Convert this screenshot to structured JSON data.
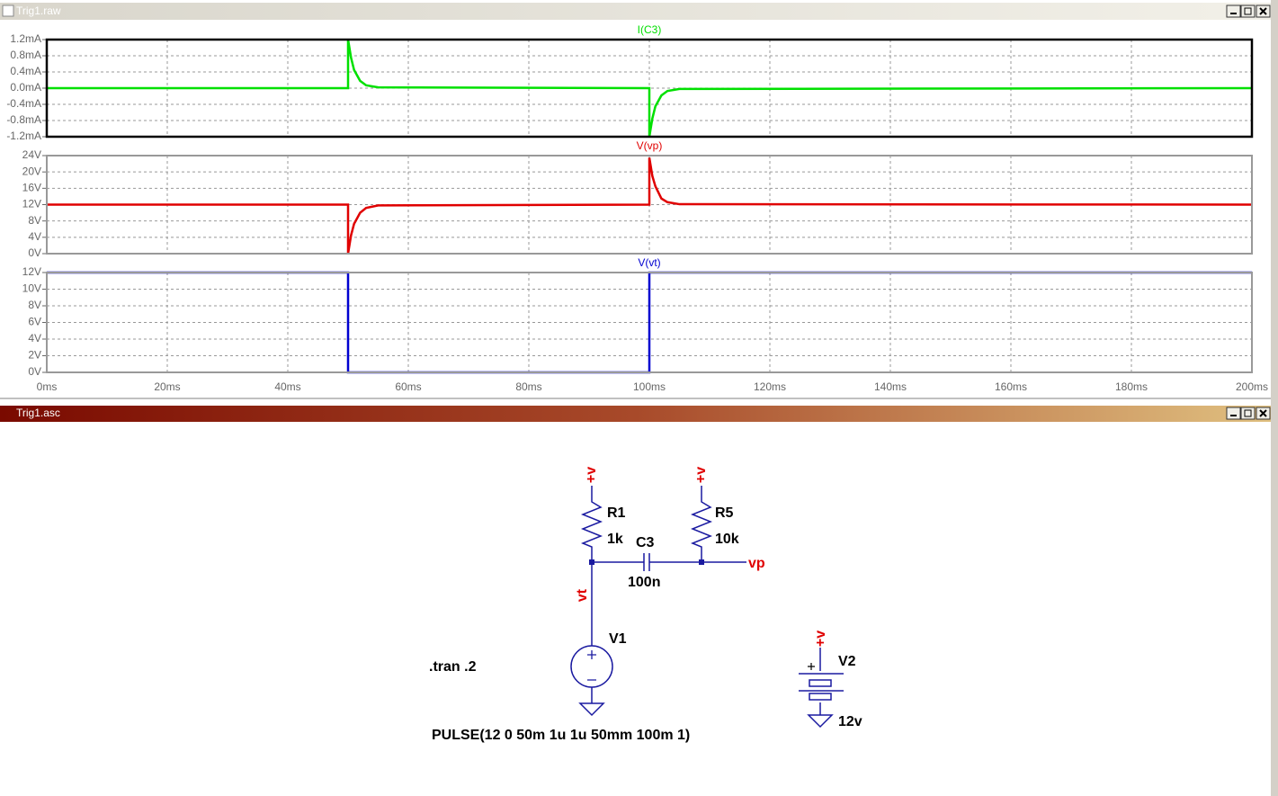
{
  "windows": {
    "raw": {
      "title": "Trig1.raw"
    },
    "schematic": {
      "title": "Trig1.asc",
      "labels": {
        "r1_supply": "+v",
        "r5_supply": "+v",
        "v2_supply": "+v",
        "r1_name": "R1",
        "r1_value": "1k",
        "c3_name": "C3",
        "c3_value": "100n",
        "r5_name": "R5",
        "r5_value": "10k",
        "vp_net": "vp",
        "vt_net": "vt",
        "v1_name": "V1",
        "v1_value": "PULSE(12 0 50m 1u 1u 50mm 100m 1)",
        "directive": ".tran .2",
        "v2_name": "V2",
        "v2_value": "12v"
      }
    }
  },
  "chart_data": [
    {
      "type": "line",
      "x": [
        0,
        50,
        50,
        50.5,
        51,
        52,
        53,
        55,
        100,
        100,
        100.5,
        101,
        102,
        103,
        105,
        200
      ],
      "series": [
        {
          "name": "I(C3)",
          "color": "#00e000",
          "values": [
            0,
            0,
            1.2,
            0.75,
            0.45,
            0.18,
            0.07,
            0.02,
            0,
            -1.2,
            -0.75,
            -0.45,
            -0.18,
            -0.07,
            -0.02,
            0
          ]
        }
      ],
      "xlim": [
        0,
        200
      ],
      "xticks": [
        0,
        20,
        40,
        60,
        80,
        100,
        120,
        140,
        160,
        180,
        200
      ],
      "ylim": [
        -1.2,
        1.2
      ],
      "yticks": [
        {
          "value": 1.2,
          "label": "1.2mA"
        },
        {
          "value": 0.8,
          "label": "0.8mA"
        },
        {
          "value": 0.4,
          "label": "0.4mA"
        },
        {
          "value": 0,
          "label": "0.0mA"
        },
        {
          "value": -0.4,
          "label": "-0.4mA"
        },
        {
          "value": -0.8,
          "label": "-0.8mA"
        },
        {
          "value": -1.2,
          "label": "-1.2mA"
        }
      ],
      "grid": true
    },
    {
      "type": "line",
      "x": [
        0,
        50,
        50,
        50.5,
        51,
        52,
        53,
        55,
        100,
        100,
        100.5,
        101,
        102,
        103,
        105,
        200
      ],
      "series": [
        {
          "name": "V(vp)",
          "color": "#e00000",
          "values": [
            12,
            12,
            0,
            4.5,
            7.3,
            10,
            11.2,
            11.8,
            12,
            23.5,
            19,
            16.5,
            13.5,
            12.6,
            12.1,
            12
          ]
        }
      ],
      "xlim": [
        0,
        200
      ],
      "xticks": [
        0,
        20,
        40,
        60,
        80,
        100,
        120,
        140,
        160,
        180,
        200
      ],
      "ylim": [
        0,
        24
      ],
      "yticks": [
        {
          "value": 24,
          "label": "24V"
        },
        {
          "value": 20,
          "label": "20V"
        },
        {
          "value": 16,
          "label": "16V"
        },
        {
          "value": 12,
          "label": "12V"
        },
        {
          "value": 8,
          "label": "8V"
        },
        {
          "value": 4,
          "label": "4V"
        },
        {
          "value": 0,
          "label": "0V"
        }
      ],
      "grid": true
    },
    {
      "type": "line",
      "x": [
        0,
        50,
        50,
        100,
        100,
        200
      ],
      "series": [
        {
          "name": "V(vt)",
          "color": "#0000d0",
          "values": [
            12,
            12,
            0,
            0,
            12,
            12
          ]
        }
      ],
      "xlim": [
        0,
        200
      ],
      "xticks": [
        {
          "value": 0,
          "label": "0ms"
        },
        {
          "value": 20,
          "label": "20ms"
        },
        {
          "value": 40,
          "label": "40ms"
        },
        {
          "value": 60,
          "label": "60ms"
        },
        {
          "value": 80,
          "label": "80ms"
        },
        {
          "value": 100,
          "label": "100ms"
        },
        {
          "value": 120,
          "label": "120ms"
        },
        {
          "value": 140,
          "label": "140ms"
        },
        {
          "value": 160,
          "label": "160ms"
        },
        {
          "value": 180,
          "label": "180ms"
        },
        {
          "value": 200,
          "label": "200ms"
        }
      ],
      "ylim": [
        0,
        12
      ],
      "yticks": [
        {
          "value": 12,
          "label": "12V"
        },
        {
          "value": 10,
          "label": "10V"
        },
        {
          "value": 8,
          "label": "8V"
        },
        {
          "value": 6,
          "label": "6V"
        },
        {
          "value": 4,
          "label": "4V"
        },
        {
          "value": 2,
          "label": "2V"
        },
        {
          "value": 0,
          "label": "0V"
        }
      ],
      "grid": true
    }
  ]
}
